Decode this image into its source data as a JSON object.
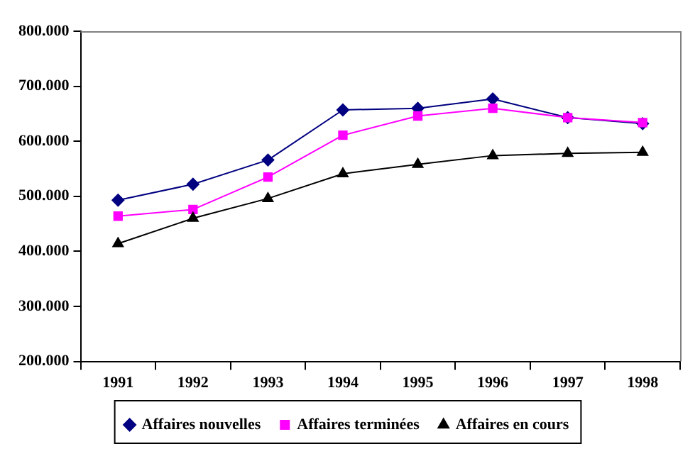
{
  "chart_data": {
    "type": "line",
    "categories": [
      "1991",
      "1992",
      "1993",
      "1994",
      "1995",
      "1996",
      "1997",
      "1998"
    ],
    "series": [
      {
        "name": "Affaires nouvelles",
        "color": "#000080",
        "marker": "diamond",
        "values": [
          493000,
          522000,
          566000,
          657000,
          660000,
          677000,
          643000,
          632000
        ]
      },
      {
        "name": "Affaires terminées",
        "color": "#ff00ff",
        "marker": "square",
        "values": [
          464000,
          476000,
          535000,
          611000,
          646000,
          660000,
          643000,
          634000
        ]
      },
      {
        "name": "Affaires en cours",
        "color": "#000000",
        "marker": "triangle",
        "values": [
          414000,
          460000,
          496000,
          541000,
          558000,
          574000,
          578000,
          580000
        ]
      }
    ],
    "ylim": [
      200000,
      800000
    ],
    "yticks": [
      {
        "value": 200000,
        "label": "200.000"
      },
      {
        "value": 300000,
        "label": "300.000"
      },
      {
        "value": 400000,
        "label": "400.000"
      },
      {
        "value": 500000,
        "label": "500.000"
      },
      {
        "value": 600000,
        "label": "600.000"
      },
      {
        "value": 700000,
        "label": "700.000"
      },
      {
        "value": 800000,
        "label": "800.000"
      }
    ],
    "grid": false,
    "legend": "bottom",
    "line_style": "solid"
  }
}
